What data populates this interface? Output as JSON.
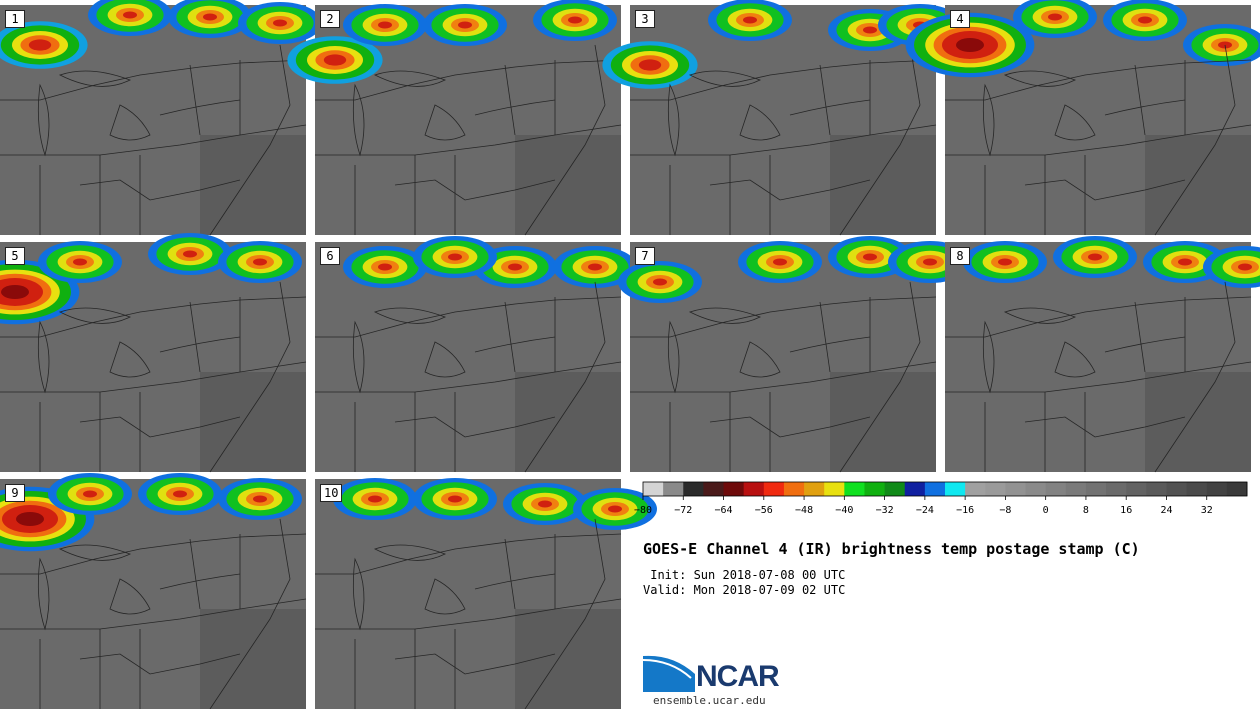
{
  "panels": [
    {
      "label": "1"
    },
    {
      "label": "2"
    },
    {
      "label": "3"
    },
    {
      "label": "4"
    },
    {
      "label": "5"
    },
    {
      "label": "6"
    },
    {
      "label": "7"
    },
    {
      "label": "8"
    },
    {
      "label": "9"
    },
    {
      "label": "10"
    }
  ],
  "colorbar": {
    "min": -80,
    "max": 40,
    "step": 4,
    "tick_labels": [
      "−80",
      "−72",
      "−64",
      "−56",
      "−48",
      "−40",
      "−32",
      "−24",
      "−16",
      "−8",
      "0",
      "8",
      "16",
      "24",
      "32"
    ],
    "tick_values": [
      -80,
      -72,
      -64,
      -56,
      -48,
      -40,
      -32,
      -24,
      -16,
      -8,
      0,
      8,
      16,
      24,
      32
    ],
    "colors": [
      "#d4d4d4",
      "#8a8a8a",
      "#2b2b2b",
      "#4a1a1a",
      "#6e0a0a",
      "#b81010",
      "#f02a10",
      "#f06e10",
      "#e0a010",
      "#e8e010",
      "#10e020",
      "#10b010",
      "#108a18",
      "#1020a0",
      "#1070e0",
      "#10e8f0",
      "#a0a0a0",
      "#9a9a9a",
      "#929292",
      "#8a8a8a",
      "#828282",
      "#7a7a7a",
      "#727272",
      "#6a6a6a",
      "#626262",
      "#5a5a5a",
      "#525252",
      "#4a4a4a",
      "#424242",
      "#3a3a3a"
    ]
  },
  "title": "GOES-E Channel 4 (IR) brightness temp postage stamp (C)",
  "init": " Init: Sun 2018-07-08 00 UTC",
  "valid": "Valid: Mon 2018-07-09 02 UTC",
  "logo": {
    "text": "NCAR",
    "site": "ensemble.ucar.edu",
    "brand_color": "#1a3a6e",
    "swoosh_color": "#1478c8"
  }
}
